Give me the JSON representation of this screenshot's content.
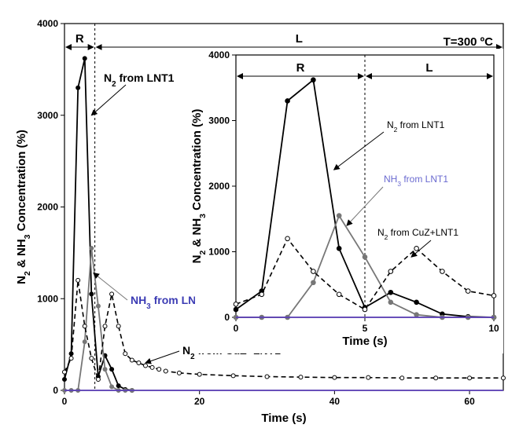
{
  "chart_data": [
    {
      "type": "line",
      "title": "",
      "annotation_temperature": "T=300 ºC",
      "xlabel": "Time (s)",
      "ylabel": "N2 & NH3 Concentration (%)",
      "xlim": [
        0,
        65
      ],
      "ylim": [
        0,
        4000
      ],
      "xticks": [
        0,
        20,
        40,
        60
      ],
      "yticks": [
        0,
        1000,
        2000,
        3000,
        4000
      ],
      "grid": false,
      "regions": [
        {
          "label": "R",
          "x_start": 0,
          "x_end": 4.5
        },
        {
          "label": "L",
          "x_start": 4.5,
          "x_end": 65
        }
      ],
      "series": [
        {
          "name": "N2 from LNT1",
          "color": "#000000",
          "style": "solid",
          "marker": "filled-circle",
          "x": [
            0,
            1,
            2,
            3,
            4,
            5,
            6,
            7,
            8,
            9,
            10
          ],
          "y": [
            120,
            400,
            3300,
            3620,
            1050,
            150,
            380,
            230,
            50,
            10,
            0
          ]
        },
        {
          "name": "NH3 from LNT1",
          "color": "#777777",
          "style": "solid",
          "marker": "filled-circle",
          "x": [
            0,
            1,
            2,
            3,
            4,
            5,
            6,
            7,
            8,
            9,
            10
          ],
          "y": [
            0,
            0,
            0,
            530,
            1550,
            920,
            230,
            40,
            0,
            0,
            0
          ]
        },
        {
          "name": "N2 from CuZ+LNT1",
          "color": "#000000",
          "style": "dashed",
          "marker": "open-circle",
          "x": [
            0,
            1,
            2,
            3,
            4,
            5,
            6,
            7,
            8,
            9,
            10,
            11,
            12,
            13,
            14,
            15,
            17,
            20,
            25,
            30,
            35,
            40,
            45,
            50,
            55,
            60,
            65
          ],
          "y": [
            200,
            350,
            1200,
            700,
            350,
            120,
            700,
            1050,
            700,
            400,
            330,
            300,
            270,
            250,
            230,
            210,
            190,
            175,
            160,
            150,
            145,
            140,
            140,
            135,
            135,
            135,
            135
          ]
        },
        {
          "name": "baseline",
          "color": "#5b3fb8",
          "style": "solid",
          "marker": "none",
          "x": [
            0,
            65
          ],
          "y": [
            0,
            0
          ]
        }
      ],
      "annotations": [
        {
          "text": "N2 from LNT1",
          "series": 0
        },
        {
          "text": "NH3 from LNT1",
          "series": 1
        },
        {
          "text": "N2 from CuZ+LNT1",
          "series": 2
        }
      ]
    },
    {
      "type": "line",
      "title": "",
      "xlabel": "Time (s)",
      "ylabel": "N2 & NH3 Concentration (%)",
      "xlim": [
        0,
        10
      ],
      "ylim": [
        0,
        4000
      ],
      "xticks": [
        0,
        5,
        10
      ],
      "yticks": [
        0,
        1000,
        2000,
        3000,
        4000
      ],
      "grid": false,
      "regions": [
        {
          "label": "R",
          "x_start": 0,
          "x_end": 5
        },
        {
          "label": "L",
          "x_start": 5,
          "x_end": 10
        }
      ],
      "series": [
        {
          "name": "N2 from LNT1",
          "color": "#000000",
          "style": "solid",
          "marker": "filled-circle",
          "x": [
            0,
            1,
            2,
            3,
            4,
            5,
            6,
            7,
            8,
            9,
            10
          ],
          "y": [
            120,
            400,
            3300,
            3620,
            1050,
            150,
            380,
            230,
            50,
            10,
            0
          ]
        },
        {
          "name": "NH3 from LNT1",
          "color": "#777777",
          "style": "solid",
          "marker": "filled-circle",
          "x": [
            0,
            1,
            2,
            3,
            4,
            5,
            6,
            7,
            8,
            9,
            10
          ],
          "y": [
            0,
            0,
            0,
            530,
            1550,
            920,
            230,
            40,
            0,
            0,
            0
          ]
        },
        {
          "name": "N2 from CuZ+LNT1",
          "color": "#000000",
          "style": "dashed",
          "marker": "open-circle",
          "x": [
            0,
            1,
            2,
            3,
            4,
            5,
            6,
            7,
            8,
            9,
            10
          ],
          "y": [
            200,
            350,
            1200,
            700,
            350,
            120,
            700,
            1050,
            700,
            400,
            330
          ]
        },
        {
          "name": "baseline",
          "color": "#5b3fb8",
          "style": "solid",
          "marker": "none",
          "x": [
            0,
            10
          ],
          "y": [
            0,
            0
          ]
        }
      ],
      "annotations": [
        {
          "text": "N2 from LNT1",
          "series": 0
        },
        {
          "text": "NH3 from LNT1",
          "series": 1
        },
        {
          "text": "N2 from CuZ+LNT1",
          "series": 2
        }
      ]
    }
  ]
}
